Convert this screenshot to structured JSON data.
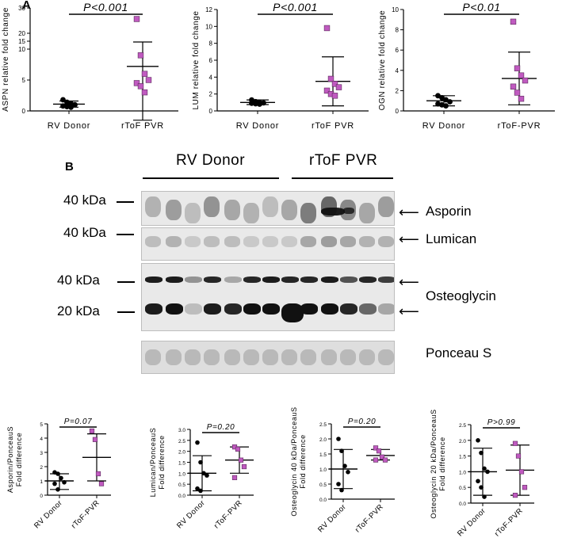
{
  "panel_a": {
    "letter": "A",
    "charts": [
      {
        "ylabel": "ASPN relative fold change",
        "p_text": "P<0.001",
        "categories": [
          "RV Donor",
          "rToF PVR"
        ],
        "yticks": [
          "0",
          "5",
          "10",
          "15",
          "20",
          "30"
        ],
        "groups": [
          {
            "points": [
              1.8,
              1.4,
              1.2,
              1.0,
              0.8,
              0.7,
              0.6
            ],
            "mean": 1.1,
            "sd_low": 0.6,
            "sd_high": 1.6,
            "color": "#000000",
            "shape": "circle"
          },
          {
            "points": [
              25,
              9,
              6,
              5,
              4.5,
              4,
              3
            ],
            "mean": 7.2,
            "sd_low": -1.5,
            "sd_high": 14.5,
            "color": "#c05ac0",
            "shape": "square"
          }
        ]
      },
      {
        "ylabel": "LUM relative fold change",
        "p_text": "P<0.001",
        "categories": [
          "RV Donor",
          "rToF PVR"
        ],
        "yticks": [
          "0",
          "2",
          "4",
          "6",
          "8",
          "10",
          "12"
        ],
        "groups": [
          {
            "points": [
              1.3,
              1.1,
              1.0,
              0.95,
              0.9,
              0.85,
              0.8
            ],
            "mean": 1.0,
            "sd_low": 0.75,
            "sd_high": 1.3,
            "color": "#000000",
            "shape": "circle"
          },
          {
            "points": [
              9.8,
              3.8,
              3.2,
              2.8,
              2.4,
              2.0,
              1.8
            ],
            "mean": 3.5,
            "sd_low": 0.6,
            "sd_high": 6.4,
            "color": "#c05ac0",
            "shape": "square"
          }
        ]
      },
      {
        "ylabel": "OGN relative fold change",
        "p_text": "P<0.01",
        "categories": [
          "RV Donor",
          "rToF-PVR"
        ],
        "yticks": [
          "0",
          "2",
          "4",
          "6",
          "8",
          "10"
        ],
        "groups": [
          {
            "points": [
              1.5,
              1.3,
              1.1,
              0.9,
              0.7,
              0.6,
              0.5
            ],
            "mean": 1.0,
            "sd_low": 0.5,
            "sd_high": 1.5,
            "color": "#000000",
            "shape": "circle"
          },
          {
            "points": [
              8.8,
              4.2,
              3.5,
              3.0,
              2.4,
              1.8,
              1.2
            ],
            "mean": 3.2,
            "sd_low": 0.6,
            "sd_high": 5.8,
            "color": "#c05ac0",
            "shape": "square"
          }
        ]
      }
    ]
  },
  "panel_b": {
    "letter": "B",
    "group_labels": [
      "RV Donor",
      "rToF PVR"
    ],
    "markers": [
      "40 kDa",
      "40 kDa",
      "40 kDa",
      "20 kDa"
    ],
    "bands": [
      "Asporin",
      "Lumican",
      "Osteoglycin",
      "Ponceau S"
    ]
  },
  "panel_c": {
    "charts": [
      {
        "ylabel": "Asporin/PonceauS",
        "ylabel2": "Fold difference",
        "p_text": "P=0.07",
        "categories": [
          "RV Donor",
          "rToF-PVR"
        ],
        "yticks": [
          "0",
          "1",
          "2",
          "3",
          "4",
          "5"
        ],
        "groups": [
          {
            "points": [
              1.6,
              1.5,
              1.2,
              0.9,
              0.8,
              0.4
            ],
            "mean": 1.0,
            "sd_low": 0.4,
            "sd_high": 1.5,
            "color": "#000000",
            "shape": "circle"
          },
          {
            "points": [
              4.5,
              3.9,
              1.5,
              0.8
            ],
            "mean": 2.65,
            "sd_low": 1.0,
            "sd_high": 4.3,
            "color": "#c05ac0",
            "shape": "square"
          }
        ]
      },
      {
        "ylabel": "Lumican/PonceauS",
        "ylabel2": "Fold difference",
        "p_text": "P=0.20",
        "categories": [
          "RV Donor",
          "rToF-PVR"
        ],
        "yticks": [
          "0.0",
          "0.5",
          "1.0",
          "1.5",
          "2.0",
          "2.5",
          "3.0"
        ],
        "groups": [
          {
            "points": [
              2.4,
              1.5,
              1.0,
              0.9,
              0.3,
              0.2
            ],
            "mean": 1.0,
            "sd_low": 0.2,
            "sd_high": 1.8,
            "color": "#000000",
            "shape": "circle"
          },
          {
            "points": [
              2.2,
              2.1,
              1.6,
              1.3,
              0.8
            ],
            "mean": 1.6,
            "sd_low": 1.0,
            "sd_high": 2.2,
            "color": "#c05ac0",
            "shape": "square"
          }
        ]
      },
      {
        "ylabel": "Osteoglycin 40 kDa/PonceauS",
        "ylabel2": "Fold difference",
        "p_text": "P=0.20",
        "categories": [
          "RV Donor",
          "rToF-PVR"
        ],
        "yticks": [
          "0.0",
          "0.5",
          "1.0",
          "1.5",
          "2.0",
          "2.5"
        ],
        "groups": [
          {
            "points": [
              2.0,
              1.6,
              1.1,
              0.9,
              0.5,
              0.3
            ],
            "mean": 1.0,
            "sd_low": 0.35,
            "sd_high": 1.65,
            "color": "#000000",
            "shape": "circle"
          },
          {
            "points": [
              1.7,
              1.6,
              1.4,
              1.3,
              1.3
            ],
            "mean": 1.45,
            "sd_low": 1.3,
            "sd_high": 1.65,
            "color": "#c05ac0",
            "shape": "square"
          }
        ]
      },
      {
        "ylabel": "Osteoglycin 20 kDa/PonceauS",
        "ylabel2": "Fold difference",
        "p_text": "P>0.99",
        "categories": [
          "RV Donor",
          "rToF-PVR"
        ],
        "yticks": [
          "0.0",
          "0.5",
          "1.0",
          "1.5",
          "2.0",
          "2.5"
        ],
        "groups": [
          {
            "points": [
              2.0,
              1.6,
              1.1,
              1.0,
              0.7,
              0.5,
              0.2
            ],
            "mean": 1.0,
            "sd_low": 0.25,
            "sd_high": 1.75,
            "color": "#000000",
            "shape": "circle"
          },
          {
            "points": [
              1.9,
              1.5,
              1.0,
              0.5,
              0.25
            ],
            "mean": 1.05,
            "sd_low": 0.25,
            "sd_high": 1.85,
            "color": "#c05ac0",
            "shape": "square"
          }
        ]
      }
    ]
  },
  "chart_data": [
    {
      "type": "scatter",
      "ylabel": "ASPN relative fold change",
      "categories": [
        "RV Donor",
        "rToF PVR"
      ],
      "series": [
        {
          "name": "RV Donor",
          "values": [
            1.8,
            1.4,
            1.2,
            1.0,
            0.8,
            0.7,
            0.6
          ]
        },
        {
          "name": "rToF PVR",
          "values": [
            25,
            9,
            6,
            5,
            4.5,
            4,
            3
          ]
        }
      ],
      "annotation": "P<0.001"
    },
    {
      "type": "scatter",
      "ylabel": "LUM relative fold change",
      "categories": [
        "RV Donor",
        "rToF PVR"
      ],
      "ylim": [
        0,
        12
      ],
      "series": [
        {
          "name": "RV Donor",
          "values": [
            1.3,
            1.1,
            1.0,
            0.95,
            0.9,
            0.85,
            0.8
          ]
        },
        {
          "name": "rToF PVR",
          "values": [
            9.8,
            3.8,
            3.2,
            2.8,
            2.4,
            2.0,
            1.8
          ]
        }
      ],
      "annotation": "P<0.001"
    },
    {
      "type": "scatter",
      "ylabel": "OGN relative fold change",
      "categories": [
        "RV Donor",
        "rToF-PVR"
      ],
      "ylim": [
        0,
        10
      ],
      "series": [
        {
          "name": "RV Donor",
          "values": [
            1.5,
            1.3,
            1.1,
            0.9,
            0.7,
            0.6,
            0.5
          ]
        },
        {
          "name": "rToF-PVR",
          "values": [
            8.8,
            4.2,
            3.5,
            3.0,
            2.4,
            1.8,
            1.2
          ]
        }
      ],
      "annotation": "P<0.01"
    },
    {
      "type": "scatter",
      "ylabel": "Asporin/PonceauS Fold difference",
      "categories": [
        "RV Donor",
        "rToF-PVR"
      ],
      "ylim": [
        0,
        5
      ],
      "series": [
        {
          "name": "RV Donor",
          "values": [
            1.6,
            1.5,
            1.2,
            0.9,
            0.8,
            0.4
          ]
        },
        {
          "name": "rToF-PVR",
          "values": [
            4.5,
            3.9,
            1.5,
            0.8
          ]
        }
      ],
      "annotation": "P=0.07"
    },
    {
      "type": "scatter",
      "ylabel": "Lumican/PonceauS Fold difference",
      "categories": [
        "RV Donor",
        "rToF-PVR"
      ],
      "ylim": [
        0,
        3
      ],
      "series": [
        {
          "name": "RV Donor",
          "values": [
            2.4,
            1.5,
            1.0,
            0.9,
            0.3,
            0.2
          ]
        },
        {
          "name": "rToF-PVR",
          "values": [
            2.2,
            2.1,
            1.6,
            1.3,
            0.8
          ]
        }
      ],
      "annotation": "P=0.20"
    },
    {
      "type": "scatter",
      "ylabel": "Osteoglycin 40 kDa/PonceauS Fold difference",
      "categories": [
        "RV Donor",
        "rToF-PVR"
      ],
      "ylim": [
        0,
        2.5
      ],
      "series": [
        {
          "name": "RV Donor",
          "values": [
            2.0,
            1.6,
            1.1,
            0.9,
            0.5,
            0.3
          ]
        },
        {
          "name": "rToF-PVR",
          "values": [
            1.7,
            1.6,
            1.4,
            1.3,
            1.3
          ]
        }
      ],
      "annotation": "P=0.20"
    },
    {
      "type": "scatter",
      "ylabel": "Osteoglycin 20 kDa/PonceauS Fold difference",
      "categories": [
        "RV Donor",
        "rToF-PVR"
      ],
      "ylim": [
        0,
        2.5
      ],
      "series": [
        {
          "name": "RV Donor",
          "values": [
            2.0,
            1.6,
            1.1,
            1.0,
            0.7,
            0.5,
            0.2
          ]
        },
        {
          "name": "rToF-PVR",
          "values": [
            1.9,
            1.5,
            1.0,
            0.5,
            0.25
          ]
        }
      ],
      "annotation": "P>0.99"
    }
  ]
}
